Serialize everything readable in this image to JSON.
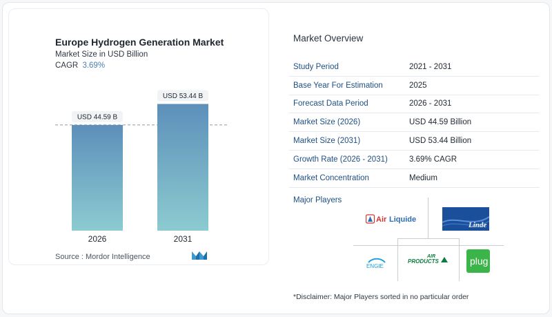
{
  "chart_data": {
    "type": "bar",
    "title": "Europe Hydrogen Generation Market",
    "subtitle": "Market Size in USD Billion",
    "cagr_label": "CAGR",
    "cagr_value": "3.69%",
    "categories": [
      "2026",
      "2031"
    ],
    "values": [
      44.59,
      53.44
    ],
    "data_labels": [
      "USD 44.59 B",
      "USD 53.44 B"
    ],
    "ylim": [
      0,
      60
    ],
    "colors": {
      "bar_top": "#5d8fba",
      "bar_bottom": "#8ccbd0"
    }
  },
  "source": "Source :  Mordor Intelligence",
  "overview": {
    "title": "Market Overview",
    "rows": [
      {
        "key": "Study Period",
        "value": "2021 - 2031"
      },
      {
        "key": "Base Year For Estimation",
        "value": "2025"
      },
      {
        "key": "Forecast Data Period",
        "value": "2026 - 2031"
      },
      {
        "key": "Market Size (2026)",
        "value": "USD 44.59 Billion"
      },
      {
        "key": "Market Size (2031)",
        "value": "USD 53.44 Billion"
      },
      {
        "key": "Growth Rate (2026 - 2031)",
        "value": "3.69% CAGR"
      },
      {
        "key": "Market Concentration",
        "value": "Medium"
      }
    ]
  },
  "players": {
    "title": "Major Players",
    "logos": [
      "Air Liquide",
      "Linde",
      "ENGIE",
      "AIR PRODUCTS",
      "plug"
    ]
  },
  "disclaimer": "*Disclaimer: Major Players sorted in no particular order"
}
